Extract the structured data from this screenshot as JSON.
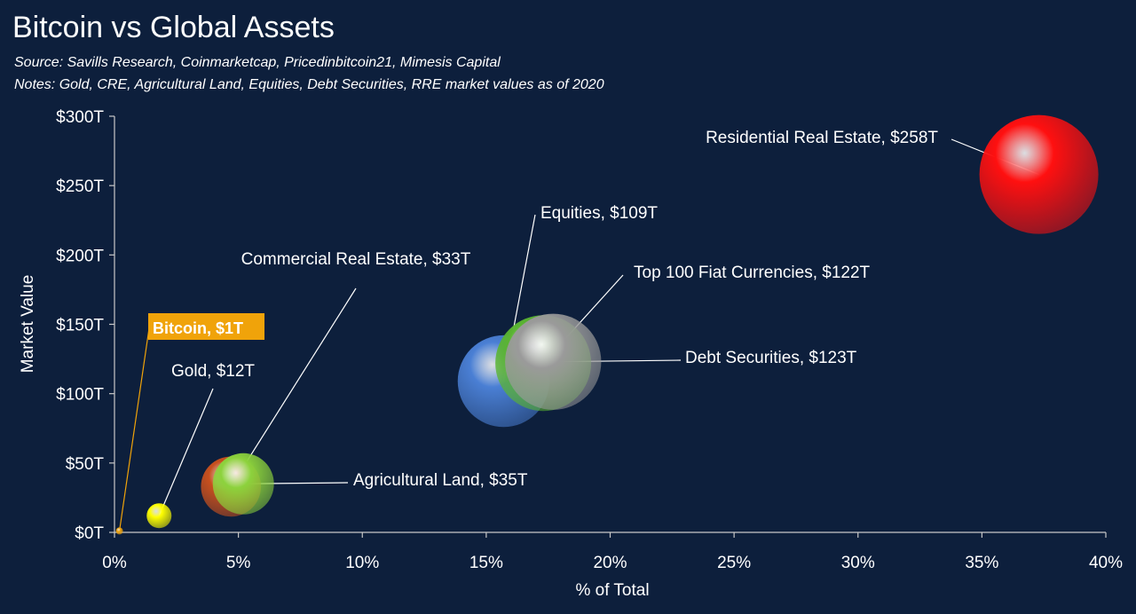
{
  "header": {
    "title": "Bitcoin vs Global Assets",
    "source": "Source: Savills Research, Coinmarketcap, Pricedinbitcoin21, Mimesis Capital",
    "notes": "Notes: Gold, CRE, Agricultural Land, Equities, Debt Securities, RRE market values as of 2020"
  },
  "colors": {
    "background": "#0d1f3c",
    "bitcoin_label_bg": "#f0a30a",
    "leader_line": "#ffffff",
    "bitcoin_leader": "#f0a30a"
  },
  "chart_data": {
    "type": "bubble",
    "xlabel": "% of Total",
    "ylabel": "Market Value",
    "xlim": [
      0,
      40
    ],
    "ylim": [
      0,
      300
    ],
    "x_unit": "%",
    "y_unit": "trillion USD",
    "grid": false,
    "xticks": [
      0,
      5,
      10,
      15,
      20,
      25,
      30,
      35,
      40
    ],
    "yticks": [
      0,
      50,
      100,
      150,
      200,
      250,
      300
    ],
    "xtick_labels": [
      "0%",
      "5%",
      "10%",
      "15%",
      "20%",
      "25%",
      "30%",
      "35%",
      "40%"
    ],
    "ytick_labels": [
      "$0T",
      "$50T",
      "$100T",
      "$150T",
      "$200T",
      "$250T",
      "$300T"
    ],
    "points": [
      {
        "name": "Bitcoin",
        "label": "Bitcoin, $1T",
        "x": 0.2,
        "y": 1,
        "color": "#f0a30a",
        "highlight": true
      },
      {
        "name": "Gold",
        "label": "Gold, $12T",
        "x": 1.8,
        "y": 12,
        "color": "#ffff00"
      },
      {
        "name": "Commercial Real Estate",
        "label": "Commercial Real Estate, $33T",
        "x": 4.7,
        "y": 33,
        "color": "#c8501e"
      },
      {
        "name": "Agricultural Land",
        "label": "Agricultural Land, $35T",
        "x": 5.2,
        "y": 35,
        "color": "#8cd23c"
      },
      {
        "name": "Equities",
        "label": "Equities, $109T",
        "x": 15.7,
        "y": 109,
        "color": "#4a7fd4"
      },
      {
        "name": "Top 100 Fiat Currencies",
        "label": "Top 100 Fiat Currencies, $122T",
        "x": 17.3,
        "y": 122,
        "color": "#5ab432"
      },
      {
        "name": "Debt Securities",
        "label": "Debt Securities, $123T",
        "x": 17.7,
        "y": 123,
        "color": "#9a9a9a"
      },
      {
        "name": "Residential Real Estate",
        "label": "Residential Real Estate, $258T",
        "x": 37.3,
        "y": 258,
        "color": "#ff1010"
      }
    ]
  }
}
